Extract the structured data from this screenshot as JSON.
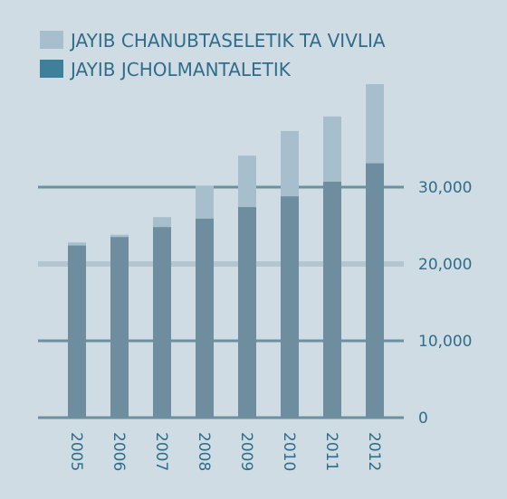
{
  "chart_data": {
    "type": "bar",
    "stacked": "overlay",
    "categories": [
      "2005",
      "2006",
      "2007",
      "2008",
      "2009",
      "2010",
      "2011",
      "2012"
    ],
    "series": [
      {
        "name": "JAYIB CHANUBTASELETIK TA VIVLIA",
        "values": [
          22800,
          23800,
          26100,
          30200,
          34100,
          37300,
          39200,
          43400
        ]
      },
      {
        "name": "JAYIB JCHOLMANTALETIK",
        "values": [
          22400,
          23500,
          24800,
          25900,
          27400,
          28800,
          30700,
          33100
        ]
      }
    ],
    "yticks": [
      "0",
      "10,000",
      "20,000",
      "30,000"
    ],
    "ylim": [
      0,
      43400
    ],
    "legend_position": "top-left",
    "grid": true,
    "colors": {
      "background": "#cfdce4",
      "series_1": "#a7bfcd",
      "series_2": "#6e8ea0",
      "legend_series_2": "#3e7f99",
      "text": "#2f6d8a",
      "gridline": "#6e8fa0",
      "gridline_highlight": "#b3c5cf"
    }
  }
}
